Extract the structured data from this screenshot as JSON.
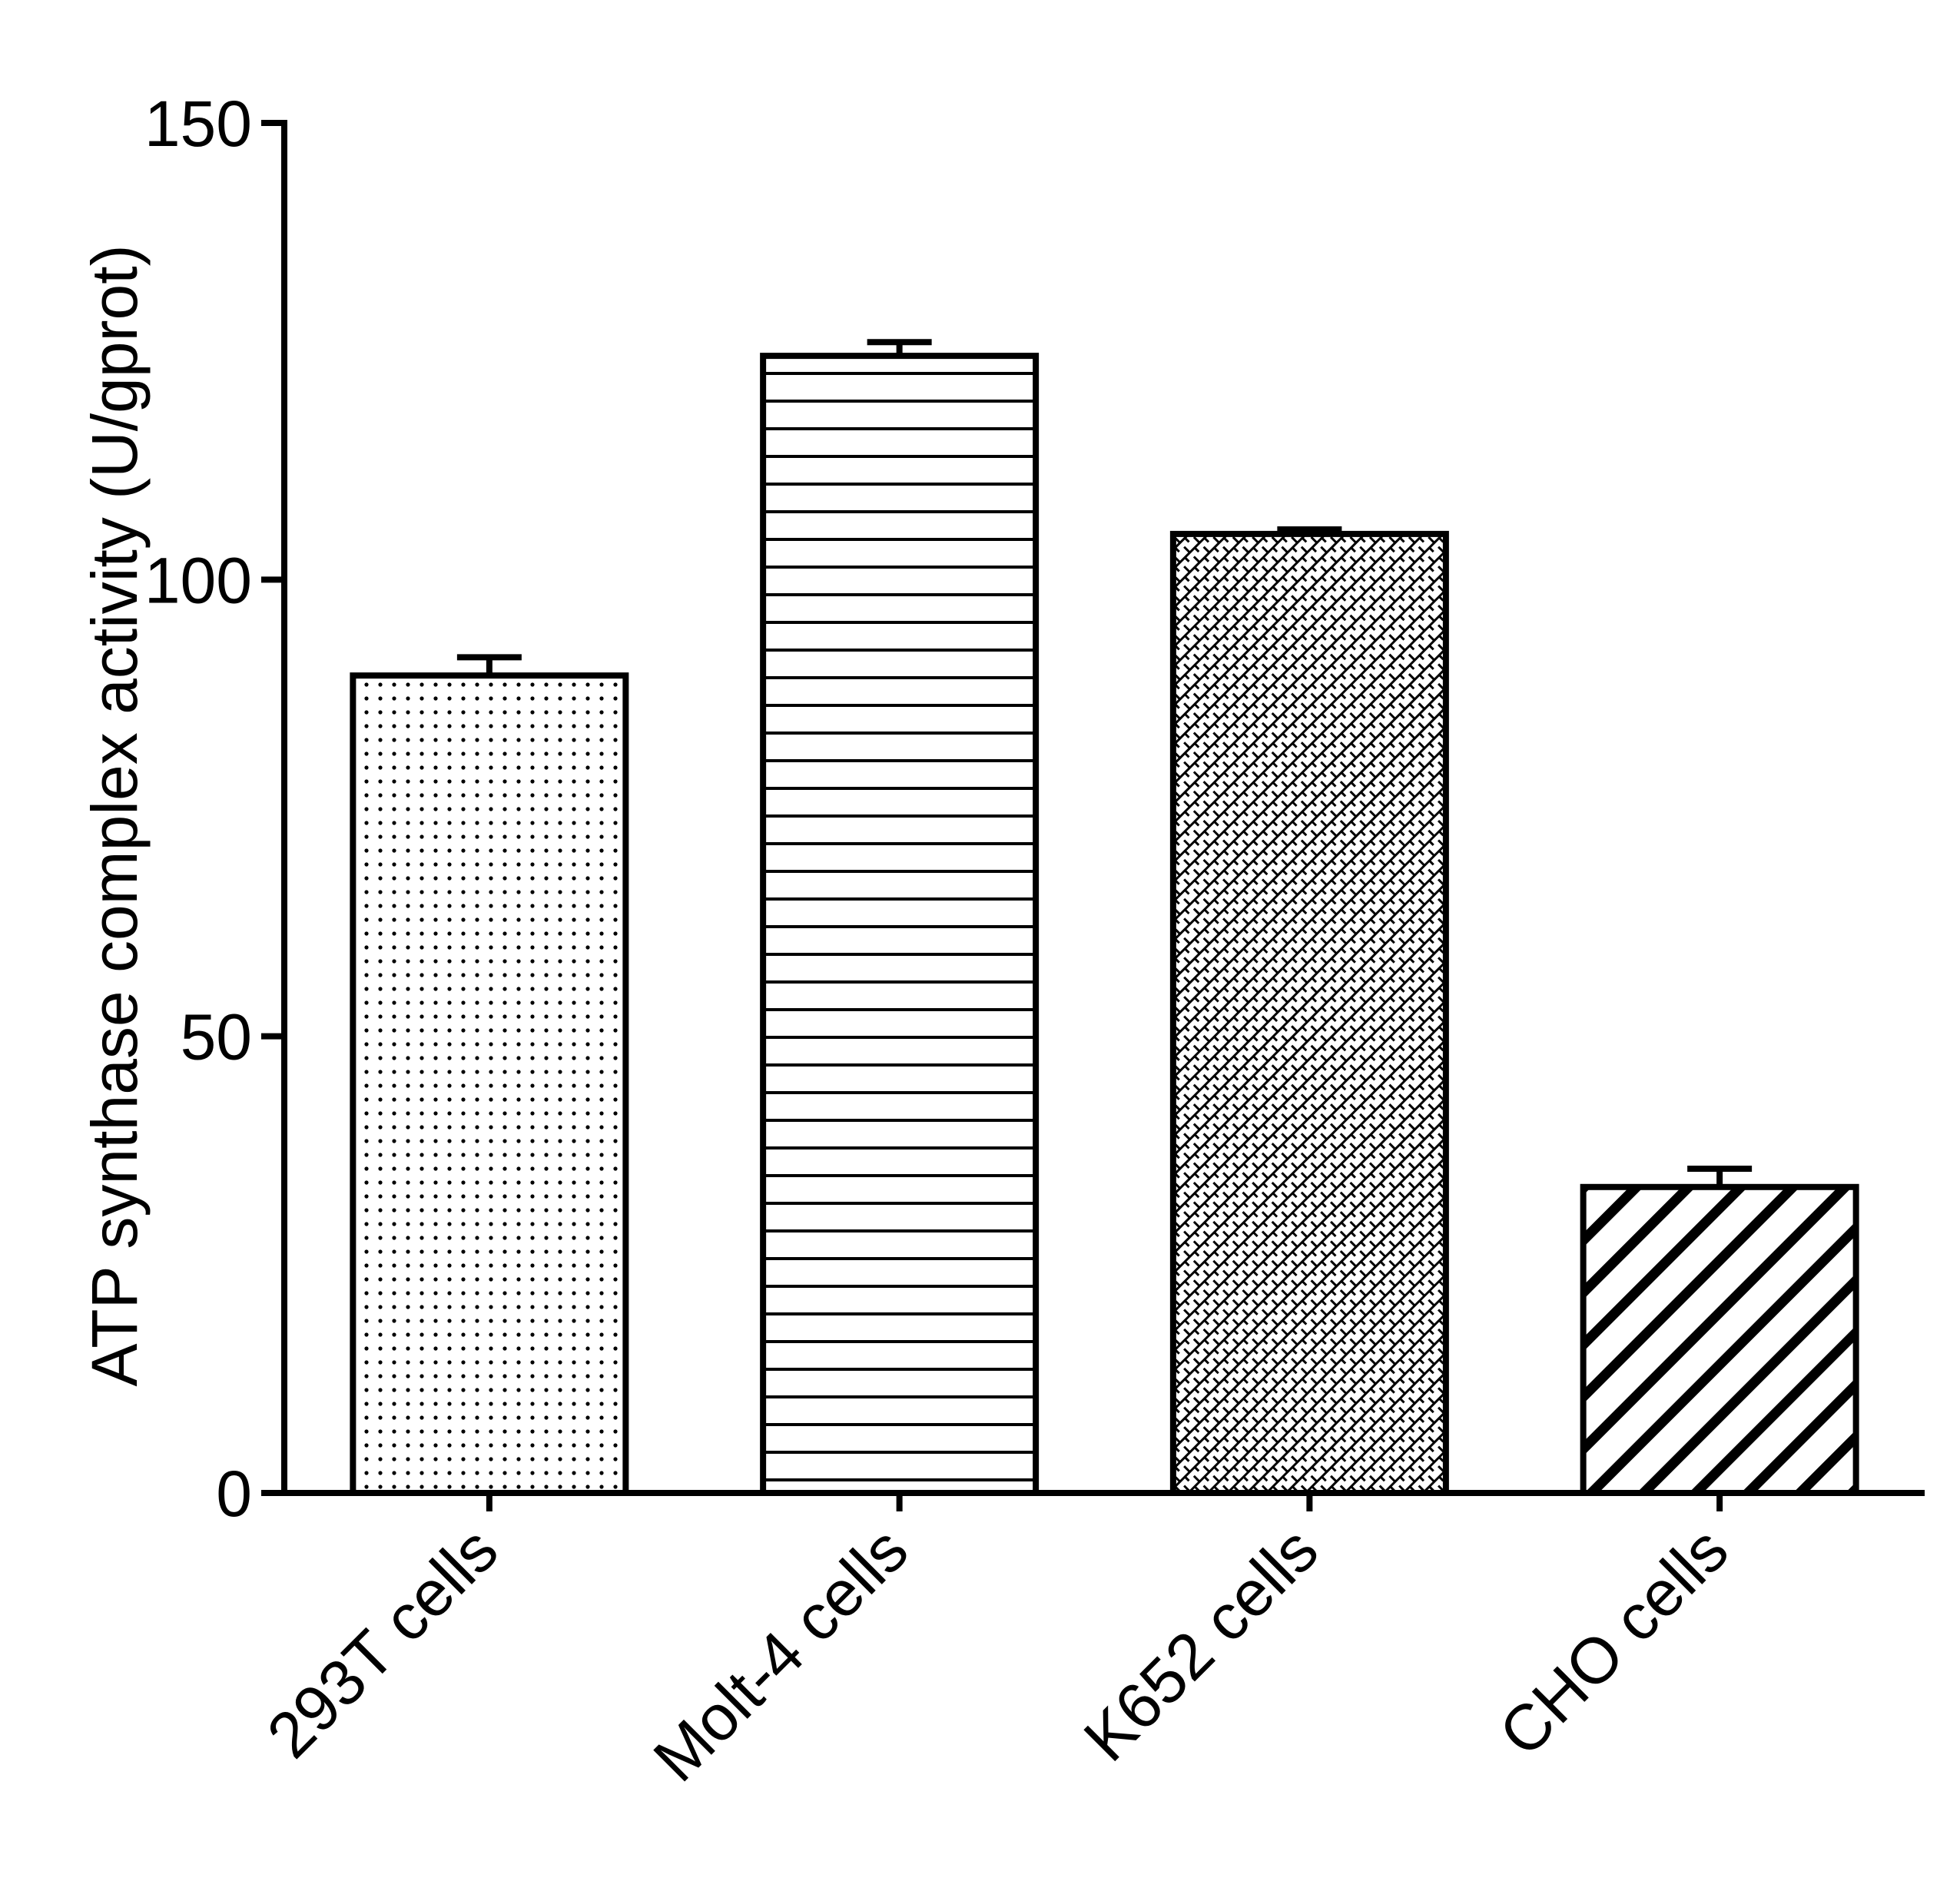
{
  "chart_data": {
    "type": "bar",
    "title": "",
    "xlabel": "",
    "ylabel": "ATP synthase complex activity (U/gprot)",
    "ylim": [
      0,
      150
    ],
    "yticks": [
      0,
      50,
      100,
      150
    ],
    "grid": false,
    "legend": "none",
    "categories": [
      "293T cells",
      "Molt-4 cells",
      "K652 cells",
      "CHO cells"
    ],
    "series": [
      {
        "values": [
          89.5,
          124.5,
          105,
          33.5
        ],
        "error": [
          2,
          1.5,
          0.5,
          2
        ]
      }
    ],
    "bar_patterns": [
      "dots",
      "horizontal-lines",
      "crosshatch",
      "diagonal-stripes"
    ],
    "colors": {
      "line": "#000000",
      "fill": "#ffffff"
    }
  }
}
